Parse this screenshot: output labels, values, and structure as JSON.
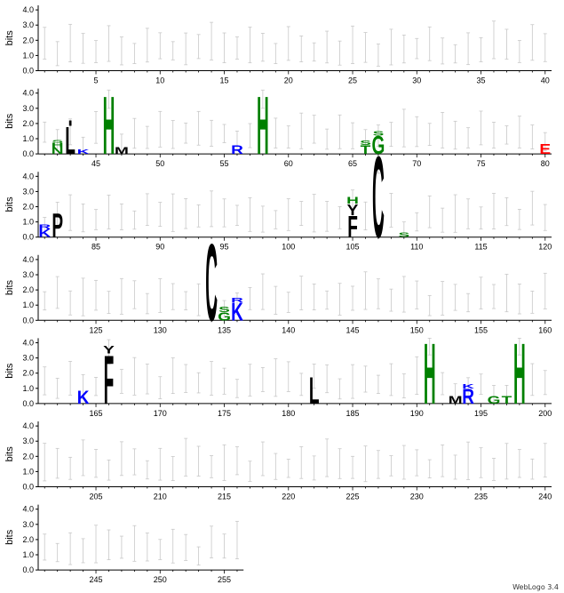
{
  "chart_data": {
    "type": "sequence-logo",
    "ylabel": "bits",
    "ylim": [
      0,
      4.3
    ],
    "yticks": [
      "0.0",
      "1.0",
      "2.0",
      "3.0",
      "4.0"
    ],
    "positions_per_row": 40,
    "total_positions": 256,
    "colors": {
      "hydrophobic": "#000000",
      "polar": "#008000",
      "basic": "#0000ff",
      "acidic": "#ff0000",
      "other": "#000000",
      "errorbar": "#c8c8c8"
    },
    "default_error_range": [
      0.3,
      2.5
    ],
    "columns": [
      {
        "pos": 43,
        "letters": [
          {
            "aa": "L",
            "bits": 1.85
          },
          {
            "aa": "I",
            "bits": 0.35
          }
        ],
        "error": [
          0.6,
          2.3
        ]
      },
      {
        "pos": 42,
        "letters": [
          {
            "aa": "N",
            "bits": 0.45
          },
          {
            "aa": "H",
            "bits": 0.3
          },
          {
            "aa": "S",
            "bits": 0.2
          }
        ],
        "error": [
          0.2,
          1.6
        ]
      },
      {
        "pos": 44,
        "letters": [
          {
            "aa": "K",
            "bits": 0.3
          }
        ],
        "error": [
          0.1,
          1.1
        ]
      },
      {
        "pos": 46,
        "letters": [
          {
            "aa": "H",
            "bits": 3.9
          }
        ],
        "error": [
          3.0,
          4.2
        ]
      },
      {
        "pos": 47,
        "letters": [
          {
            "aa": "M",
            "bits": 0.45
          }
        ],
        "error": [
          0.2,
          1.3
        ]
      },
      {
        "pos": 56,
        "letters": [
          {
            "aa": "R",
            "bits": 0.6
          }
        ],
        "error": [
          0.2,
          1.5
        ]
      },
      {
        "pos": 58,
        "letters": [
          {
            "aa": "H",
            "bits": 3.9
          }
        ],
        "error": [
          3.0,
          4.2
        ]
      },
      {
        "pos": 66,
        "letters": [
          {
            "aa": "T",
            "bits": 0.6
          },
          {
            "aa": "S",
            "bits": 0.3
          }
        ],
        "error": [
          0.3,
          1.6
        ]
      },
      {
        "pos": 67,
        "letters": [
          {
            "aa": "G",
            "bits": 1.2
          },
          {
            "aa": "S",
            "bits": 0.3
          }
        ],
        "error": [
          0.5,
          1.9
        ]
      },
      {
        "pos": 80,
        "letters": [
          {
            "aa": "E",
            "bits": 0.65
          }
        ],
        "error": [
          0.2,
          1.4
        ]
      },
      {
        "pos": 81,
        "letters": [
          {
            "aa": "K",
            "bits": 0.55
          },
          {
            "aa": "R",
            "bits": 0.3
          }
        ],
        "error": [
          0.2,
          1.3
        ]
      },
      {
        "pos": 82,
        "letters": [
          {
            "aa": "P",
            "bits": 1.6
          }
        ],
        "error": [
          0.7,
          2.3
        ]
      },
      {
        "pos": 105,
        "letters": [
          {
            "aa": "F",
            "bits": 1.45
          },
          {
            "aa": "Y",
            "bits": 0.75
          },
          {
            "aa": "H",
            "bits": 0.45
          }
        ],
        "error": [
          1.2,
          3.1
        ]
      },
      {
        "pos": 107,
        "letters": [
          {
            "aa": "C",
            "bits": 5.5
          }
        ],
        "error": [
          4.2,
          5.8
        ]
      },
      {
        "pos": 109,
        "letters": [
          {
            "aa": "S",
            "bits": 0.3
          }
        ],
        "error": [
          0.1,
          1.0
        ]
      },
      {
        "pos": 134,
        "letters": [
          {
            "aa": "C",
            "bits": 5.2
          }
        ],
        "error": [
          4.2,
          5.6
        ]
      },
      {
        "pos": 135,
        "letters": [
          {
            "aa": "G",
            "bits": 0.55
          },
          {
            "aa": "S",
            "bits": 0.35
          }
        ],
        "error": [
          0.2,
          1.3
        ]
      },
      {
        "pos": 136,
        "letters": [
          {
            "aa": "K",
            "bits": 1.2
          },
          {
            "aa": "R",
            "bits": 0.3
          }
        ],
        "error": [
          0.4,
          1.8
        ]
      },
      {
        "pos": 164,
        "letters": [
          {
            "aa": "K",
            "bits": 0.9
          }
        ],
        "error": [
          0.3,
          1.9
        ]
      },
      {
        "pos": 166,
        "letters": [
          {
            "aa": "F",
            "bits": 3.3
          },
          {
            "aa": "Y",
            "bits": 0.5
          }
        ],
        "error": [
          2.6,
          4.2
        ]
      },
      {
        "pos": 182,
        "letters": [
          {
            "aa": "L",
            "bits": 1.8
          }
        ],
        "error": [
          1.0,
          2.6
        ]
      },
      {
        "pos": 191,
        "letters": [
          {
            "aa": "H",
            "bits": 4.1
          }
        ],
        "error": [
          3.2,
          4.3
        ]
      },
      {
        "pos": 193,
        "letters": [
          {
            "aa": "M",
            "bits": 0.5
          }
        ],
        "error": [
          0.2,
          1.3
        ]
      },
      {
        "pos": 194,
        "letters": [
          {
            "aa": "R",
            "bits": 1.0
          },
          {
            "aa": "K",
            "bits": 0.3
          }
        ],
        "error": [
          0.3,
          1.7
        ]
      },
      {
        "pos": 196,
        "letters": [
          {
            "aa": "G",
            "bits": 0.5
          }
        ],
        "error": [
          0.1,
          1.2
        ]
      },
      {
        "pos": 197,
        "letters": [
          {
            "aa": "T",
            "bits": 0.5
          }
        ],
        "error": [
          0.1,
          1.2
        ]
      },
      {
        "pos": 198,
        "letters": [
          {
            "aa": "H",
            "bits": 4.1
          }
        ],
        "error": [
          3.2,
          4.3
        ]
      }
    ]
  },
  "footer": "WebLogo 3.4"
}
